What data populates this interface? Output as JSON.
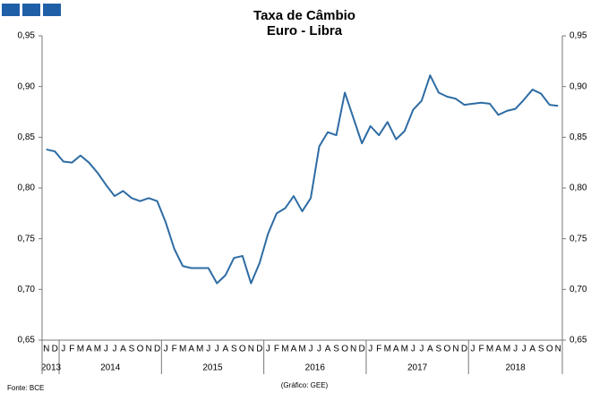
{
  "chart_data": {
    "type": "line",
    "title": "Taxa de Câmbio",
    "subtitle": "Euro - Libra",
    "categories": [
      "N",
      "D",
      "J",
      "F",
      "M",
      "A",
      "M",
      "J",
      "J",
      "A",
      "S",
      "O",
      "N",
      "D",
      "J",
      "F",
      "M",
      "A",
      "M",
      "J",
      "J",
      "A",
      "S",
      "O",
      "N",
      "D",
      "J",
      "F",
      "M",
      "A",
      "M",
      "J",
      "J",
      "A",
      "S",
      "O",
      "N",
      "D",
      "J",
      "F",
      "M",
      "A",
      "M",
      "J",
      "J",
      "A",
      "S",
      "O",
      "N",
      "D",
      "J",
      "F",
      "M",
      "A",
      "M",
      "J",
      "J",
      "A",
      "S",
      "O",
      "N"
    ],
    "year_groups": [
      "2013",
      "2014",
      "2015",
      "2016",
      "2017",
      "2018"
    ],
    "values": [
      0.838,
      0.836,
      0.826,
      0.825,
      0.832,
      0.825,
      0.815,
      0.803,
      0.792,
      0.797,
      0.79,
      0.787,
      0.79,
      0.787,
      0.766,
      0.74,
      0.723,
      0.721,
      0.721,
      0.721,
      0.706,
      0.714,
      0.731,
      0.733,
      0.706,
      0.726,
      0.755,
      0.775,
      0.78,
      0.792,
      0.777,
      0.79,
      0.841,
      0.855,
      0.852,
      0.894,
      0.869,
      0.844,
      0.861,
      0.852,
      0.865,
      0.848,
      0.856,
      0.877,
      0.886,
      0.911,
      0.894,
      0.89,
      0.888,
      0.882,
      0.883,
      0.884,
      0.883,
      0.872,
      0.876,
      0.878,
      0.887,
      0.897,
      0.893,
      0.882,
      0.881
    ],
    "color": "#2e6ca4",
    "ylim": [
      0.65,
      0.95
    ],
    "yticks": [
      {
        "value": 0.65,
        "label": "0,65"
      },
      {
        "value": 0.7,
        "label": "0,70"
      },
      {
        "value": 0.75,
        "label": "0,75"
      },
      {
        "value": 0.8,
        "label": "0,80"
      },
      {
        "value": 0.85,
        "label": "0,85"
      },
      {
        "value": 0.9,
        "label": "0,90"
      },
      {
        "value": 0.95,
        "label": "0,95"
      }
    ],
    "grid": false,
    "source": "Fonte: BCE",
    "note": "(Gráfico: GEE)"
  }
}
